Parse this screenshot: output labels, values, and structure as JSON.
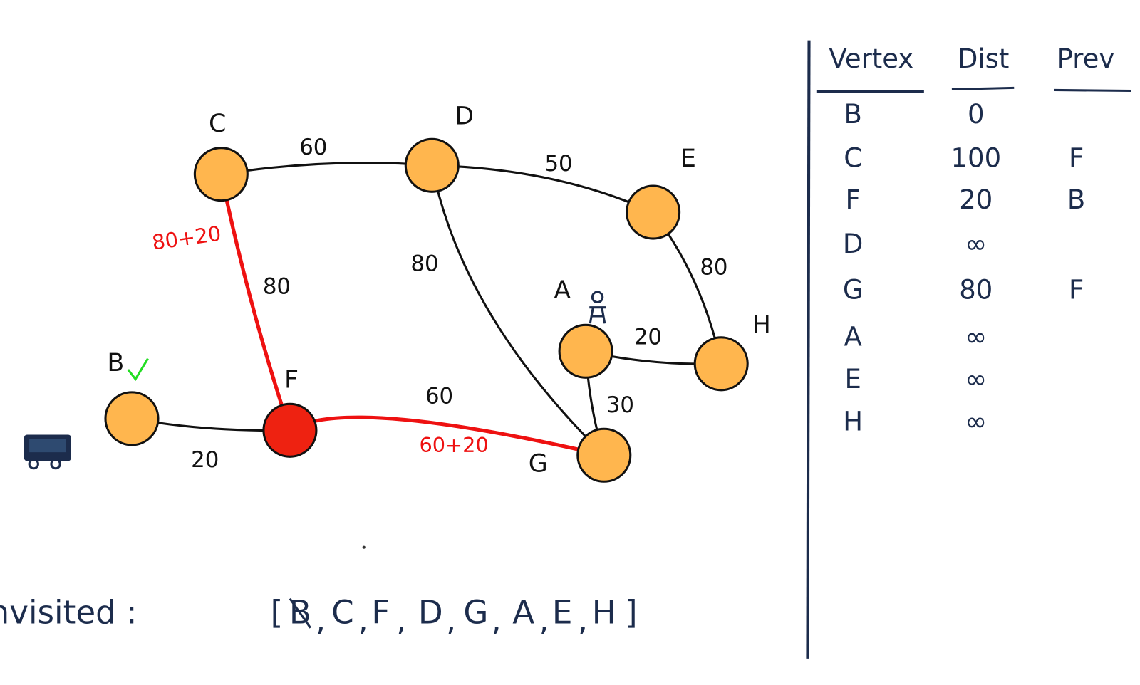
{
  "nodes": [
    {
      "label": "C"
    },
    {
      "label": "D"
    },
    {
      "label": "E"
    },
    {
      "label": "A"
    },
    {
      "label": "H"
    },
    {
      "label": "B"
    },
    {
      "label": "F"
    },
    {
      "label": "G"
    }
  ],
  "edges": [
    {
      "weight": "60"
    },
    {
      "weight": "50"
    },
    {
      "weight": "80"
    },
    {
      "weight": "80"
    },
    {
      "weight": "20"
    },
    {
      "weight": "30"
    },
    {
      "weight": "80"
    },
    {
      "weight": "20"
    },
    {
      "weight": "60"
    }
  ],
  "annotations": [
    "80+20",
    "60+20"
  ],
  "table": {
    "header": [
      "Vertex",
      "Dist",
      "Prev"
    ],
    "rows": [
      {
        "vertex": "B",
        "dist": "0"
      },
      {
        "vertex": "C",
        "dist": "100",
        "prev": "F"
      },
      {
        "vertex": "F",
        "dist": "20",
        "prev": "B"
      },
      {
        "vertex": "D",
        "dist": "∞"
      },
      {
        "vertex": "G",
        "dist": "80",
        "prev": "F"
      },
      {
        "vertex": "A",
        "dist": "∞"
      },
      {
        "vertex": "E",
        "dist": "∞"
      },
      {
        "vertex": "H",
        "dist": "∞"
      }
    ]
  },
  "unvisited": {
    "label": "Unvisited :",
    "open": "[",
    "items": [
      "B",
      "C",
      "F",
      "D",
      "G",
      "A",
      "E",
      "H"
    ],
    "separator": ",",
    "close": "]"
  }
}
